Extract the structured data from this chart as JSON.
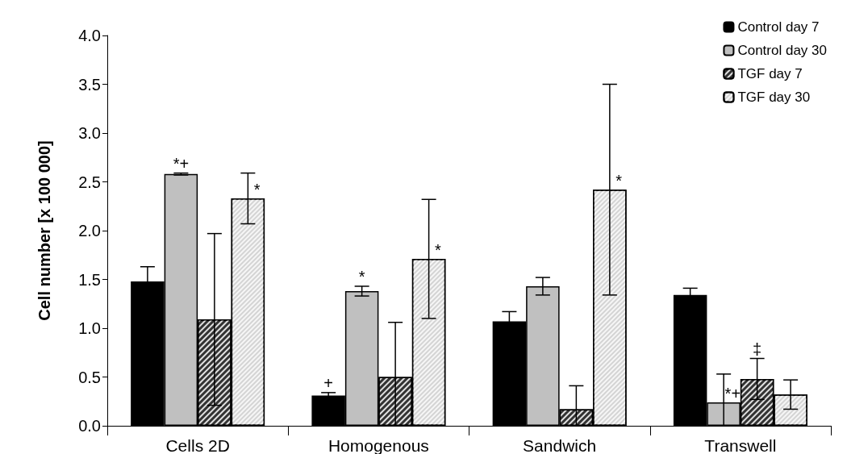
{
  "chart_data": {
    "type": "bar",
    "ylabel": "Cell number [x 100 000]",
    "categories": [
      "Cells 2D",
      "Homogenous",
      "Sandwich",
      "Transwell"
    ],
    "series": [
      {
        "name": "Control day 7",
        "color": "#000000",
        "values": [
          1.48,
          0.31,
          1.07,
          1.34
        ],
        "errors": [
          0.15,
          0.03,
          0.1,
          0.07
        ],
        "value_labels": [
          null,
          "+",
          null,
          null
        ]
      },
      {
        "name": "Control day 30",
        "color": "#c0c0c0",
        "values": [
          2.58,
          1.38,
          1.43,
          0.24
        ],
        "errors": [
          0.01,
          0.05,
          0.09,
          [
            0,
            0.53
          ]
        ],
        "value_labels": [
          "*+",
          "*",
          null,
          "*+"
        ]
      },
      {
        "name": "TGF day 7",
        "color": "#333333",
        "values": [
          1.09,
          0.5,
          0.17,
          0.48
        ],
        "errors": [
          0.88,
          [
            0,
            1.06
          ],
          [
            0,
            0.41
          ],
          0.21
        ],
        "value_labels": [
          null,
          null,
          null,
          "‡"
        ]
      },
      {
        "name": "TGF day 30",
        "color": "#d4d4d4",
        "values": [
          2.33,
          1.71,
          2.42,
          0.32
        ],
        "errors": [
          0.26,
          0.61,
          1.08,
          0.15
        ],
        "value_labels": [
          "*",
          "*",
          "*",
          null
        ]
      }
    ],
    "ylim": [
      0,
      4
    ],
    "yticks": [
      {
        "value": 0,
        "label": "0.0"
      },
      {
        "value": 0.5,
        "label": "0.5"
      },
      {
        "value": 1,
        "label": "1.0"
      },
      {
        "value": 1.5,
        "label": "1.5"
      },
      {
        "value": 2,
        "label": "2.0"
      },
      {
        "value": 2.5,
        "label": "2.5"
      },
      {
        "value": 3,
        "label": "3.0"
      },
      {
        "value": 3.5,
        "label": "3.5"
      },
      {
        "value": 4,
        "label": "4.0"
      }
    ],
    "grid": false,
    "legend": "top right"
  }
}
